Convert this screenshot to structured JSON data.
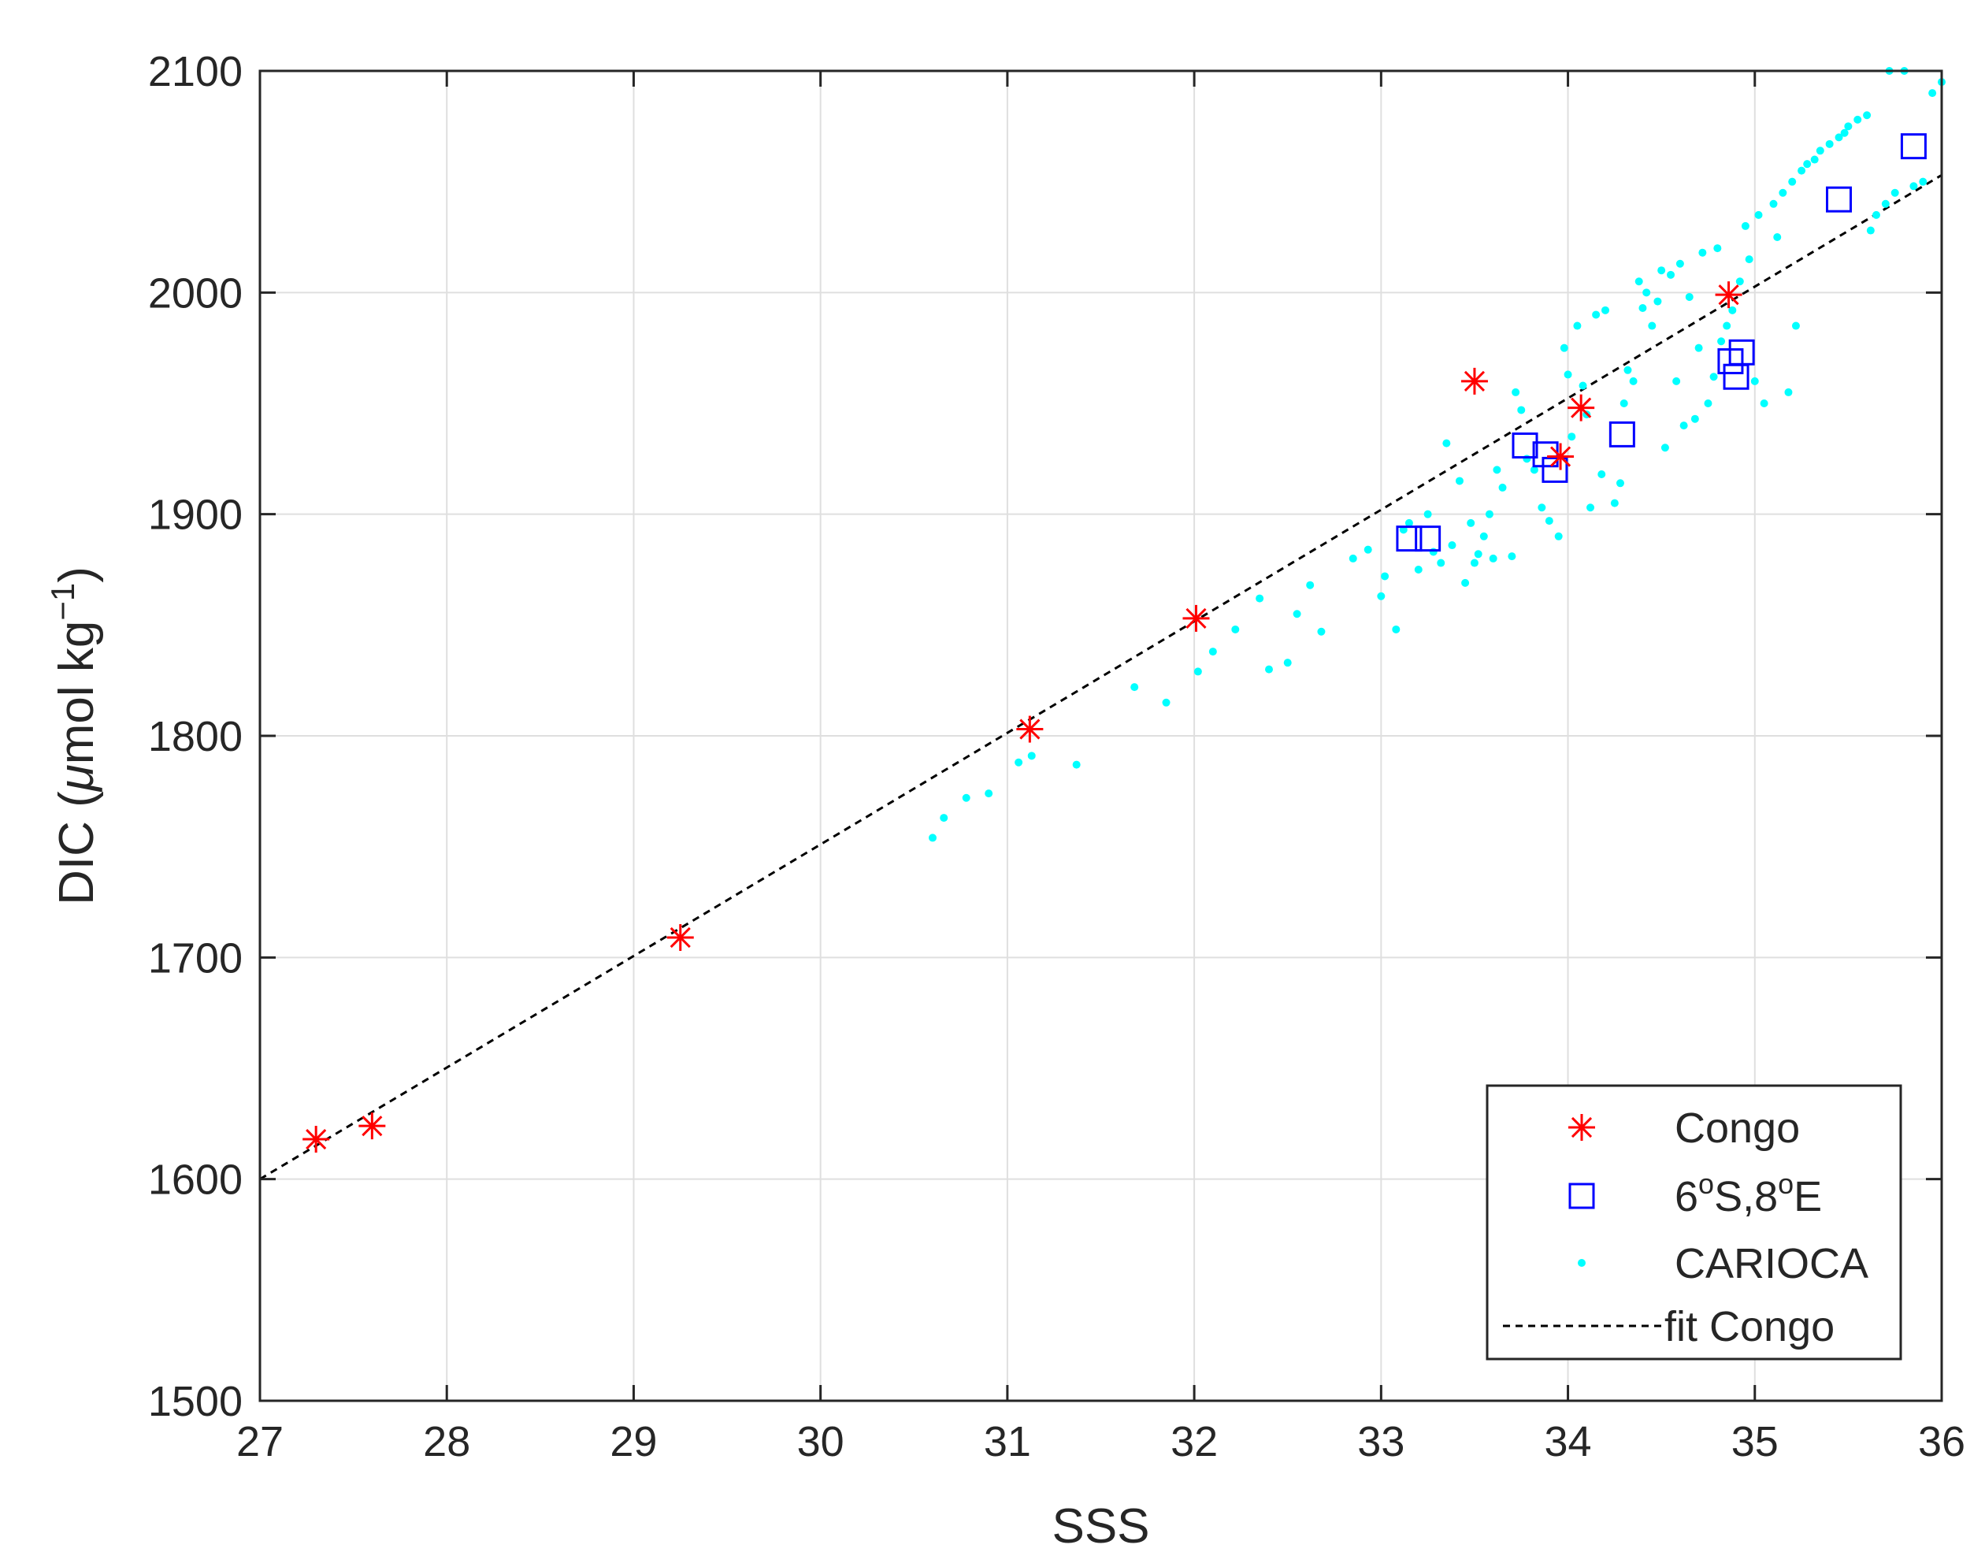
{
  "chart_data": {
    "type": "scatter",
    "xlabel": "SSS",
    "ylabel_parts": {
      "a": "DIC (",
      "mu": "μ",
      "b": "mol kg",
      "sup": "−1",
      "c": ")"
    },
    "xlim": [
      27,
      36
    ],
    "ylim": [
      1500,
      2100
    ],
    "x_ticks": [
      27,
      28,
      29,
      30,
      31,
      32,
      33,
      34,
      35,
      36
    ],
    "y_ticks": [
      1500,
      1600,
      1700,
      1800,
      1900,
      2000,
      2100
    ],
    "grid": true,
    "legend_position": "bottom-right",
    "colors": {
      "congo": "#ff0000",
      "station": "#0000ff",
      "carioca": "#00ffff",
      "fit": "#000000"
    },
    "legend": {
      "congo": "Congo",
      "station": {
        "a": "6",
        "sup1": "o",
        "b": "S,8",
        "sup2": "o",
        "c": "E"
      },
      "carioca": "CARIOCA",
      "fit": "fit Congo"
    },
    "series": {
      "congo": [
        [
          27.3,
          1618
        ],
        [
          27.6,
          1624
        ],
        [
          29.25,
          1709
        ],
        [
          31.12,
          1803
        ],
        [
          32.01,
          1853
        ],
        [
          33.5,
          1960
        ],
        [
          33.96,
          1926
        ],
        [
          34.07,
          1948
        ],
        [
          34.86,
          1999
        ]
      ],
      "station": [
        [
          33.15,
          1889
        ],
        [
          33.25,
          1889
        ],
        [
          33.77,
          1931
        ],
        [
          33.88,
          1927
        ],
        [
          33.93,
          1920
        ],
        [
          34.29,
          1936
        ],
        [
          34.87,
          1969
        ],
        [
          34.9,
          1962
        ],
        [
          34.93,
          1973
        ],
        [
          35.45,
          2042
        ],
        [
          35.85,
          2066
        ]
      ],
      "fit_line": [
        [
          27.0,
          1600
        ],
        [
          36.0,
          2053
        ]
      ],
      "carioca": [
        [
          30.6,
          1754
        ],
        [
          30.66,
          1763
        ],
        [
          30.78,
          1772
        ],
        [
          30.9,
          1774
        ],
        [
          31.06,
          1788
        ],
        [
          31.13,
          1791
        ],
        [
          31.37,
          1787
        ],
        [
          31.68,
          1822
        ],
        [
          31.85,
          1815
        ],
        [
          32.02,
          1829
        ],
        [
          32.1,
          1838
        ],
        [
          32.22,
          1848
        ],
        [
          32.35,
          1862
        ],
        [
          32.4,
          1830
        ],
        [
          32.5,
          1833
        ],
        [
          32.55,
          1855
        ],
        [
          32.62,
          1868
        ],
        [
          32.68,
          1847
        ],
        [
          32.85,
          1880
        ],
        [
          32.93,
          1884
        ],
        [
          33.0,
          1863
        ],
        [
          33.02,
          1872
        ],
        [
          33.08,
          1848
        ],
        [
          33.12,
          1893
        ],
        [
          33.15,
          1896
        ],
        [
          33.2,
          1875
        ],
        [
          33.25,
          1900
        ],
        [
          33.28,
          1883
        ],
        [
          33.32,
          1878
        ],
        [
          33.35,
          1932
        ],
        [
          33.38,
          1886
        ],
        [
          33.42,
          1915
        ],
        [
          33.45,
          1869
        ],
        [
          33.48,
          1896
        ],
        [
          33.5,
          1878
        ],
        [
          33.52,
          1882
        ],
        [
          33.55,
          1890
        ],
        [
          33.58,
          1900
        ],
        [
          33.6,
          1880
        ],
        [
          33.62,
          1920
        ],
        [
          33.65,
          1912
        ],
        [
          33.7,
          1881
        ],
        [
          33.72,
          1955
        ],
        [
          33.75,
          1947
        ],
        [
          33.78,
          1925
        ],
        [
          33.82,
          1920
        ],
        [
          33.86,
          1903
        ],
        [
          33.9,
          1897
        ],
        [
          33.95,
          1890
        ],
        [
          33.98,
          1975
        ],
        [
          34.0,
          1963
        ],
        [
          34.02,
          1935
        ],
        [
          34.05,
          1985
        ],
        [
          34.08,
          1958
        ],
        [
          34.1,
          1945
        ],
        [
          34.12,
          1903
        ],
        [
          34.15,
          1990
        ],
        [
          34.18,
          1918
        ],
        [
          34.2,
          1992
        ],
        [
          34.25,
          1905
        ],
        [
          34.28,
          1914
        ],
        [
          34.3,
          1950
        ],
        [
          34.32,
          1965
        ],
        [
          34.35,
          1960
        ],
        [
          34.38,
          2005
        ],
        [
          34.4,
          1993
        ],
        [
          34.42,
          2000
        ],
        [
          34.45,
          1985
        ],
        [
          34.48,
          1996
        ],
        [
          34.5,
          2010
        ],
        [
          34.52,
          1930
        ],
        [
          34.55,
          2008
        ],
        [
          34.58,
          1960
        ],
        [
          34.6,
          2013
        ],
        [
          34.62,
          1940
        ],
        [
          34.65,
          1998
        ],
        [
          34.68,
          1943
        ],
        [
          34.7,
          1975
        ],
        [
          34.72,
          2018
        ],
        [
          34.75,
          1950
        ],
        [
          34.78,
          1962
        ],
        [
          34.8,
          2020
        ],
        [
          34.82,
          1978
        ],
        [
          34.85,
          1985
        ],
        [
          34.88,
          1992
        ],
        [
          34.92,
          2005
        ],
        [
          34.95,
          2030
        ],
        [
          34.97,
          2015
        ],
        [
          35.0,
          1960
        ],
        [
          35.02,
          2035
        ],
        [
          35.05,
          1950
        ],
        [
          35.1,
          2040
        ],
        [
          35.12,
          2025
        ],
        [
          35.15,
          2045
        ],
        [
          35.18,
          1955
        ],
        [
          35.2,
          2050
        ],
        [
          35.22,
          1985
        ],
        [
          35.25,
          2055
        ],
        [
          35.28,
          2058
        ],
        [
          35.32,
          2060
        ],
        [
          35.35,
          2064
        ],
        [
          35.4,
          2067
        ],
        [
          35.45,
          2070
        ],
        [
          35.48,
          2072
        ],
        [
          35.5,
          2075
        ],
        [
          35.55,
          2078
        ],
        [
          35.6,
          2080
        ],
        [
          35.62,
          2028
        ],
        [
          35.65,
          2035
        ],
        [
          35.7,
          2040
        ],
        [
          35.72,
          2100
        ],
        [
          35.75,
          2045
        ],
        [
          35.8,
          2100
        ],
        [
          35.85,
          2048
        ],
        [
          35.9,
          2050
        ],
        [
          35.95,
          2090
        ],
        [
          36.0,
          2095
        ]
      ]
    }
  }
}
